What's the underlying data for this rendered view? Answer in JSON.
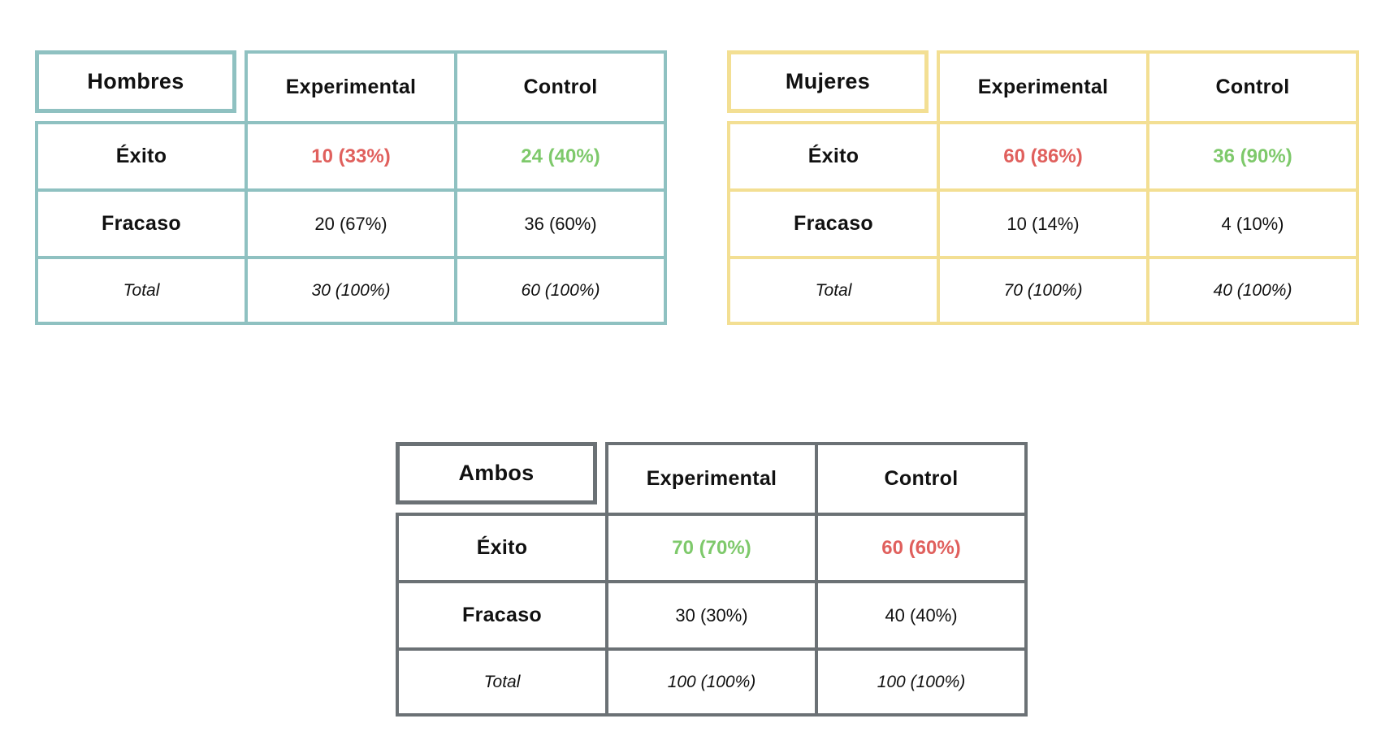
{
  "colors": {
    "hombres_border": "#8fc1c1",
    "mujeres_border": "#f3df93",
    "ambos_border": "#6b7175",
    "highlight_red": "#e0605d",
    "highlight_green": "#7ec96b"
  },
  "tables": [
    {
      "id": "hombres",
      "group_label": "Hombres",
      "columns": [
        "Experimental",
        "Control"
      ],
      "rows": [
        {
          "label": "Éxito",
          "values": [
            "10 (33%)",
            "24 (40%)"
          ],
          "highlight": [
            "red",
            "green"
          ]
        },
        {
          "label": "Fracaso",
          "values": [
            "20 (67%)",
            "36 (60%)"
          ]
        },
        {
          "label": "Total",
          "values": [
            "30 (100%)",
            "60 (100%)"
          ]
        }
      ]
    },
    {
      "id": "mujeres",
      "group_label": "Mujeres",
      "columns": [
        "Experimental",
        "Control"
      ],
      "rows": [
        {
          "label": "Éxito",
          "values": [
            "60 (86%)",
            "36 (90%)"
          ],
          "highlight": [
            "red",
            "green"
          ]
        },
        {
          "label": "Fracaso",
          "values": [
            "10 (14%)",
            "4 (10%)"
          ]
        },
        {
          "label": "Total",
          "values": [
            "70 (100%)",
            "40 (100%)"
          ]
        }
      ]
    },
    {
      "id": "ambos",
      "group_label": "Ambos",
      "columns": [
        "Experimental",
        "Control"
      ],
      "rows": [
        {
          "label": "Éxito",
          "values": [
            "70 (70%)",
            "60 (60%)"
          ],
          "highlight": [
            "green",
            "red"
          ]
        },
        {
          "label": "Fracaso",
          "values": [
            "30 (30%)",
            "40 (40%)"
          ]
        },
        {
          "label": "Total",
          "values": [
            "100 (100%)",
            "100 (100%)"
          ]
        }
      ]
    }
  ]
}
